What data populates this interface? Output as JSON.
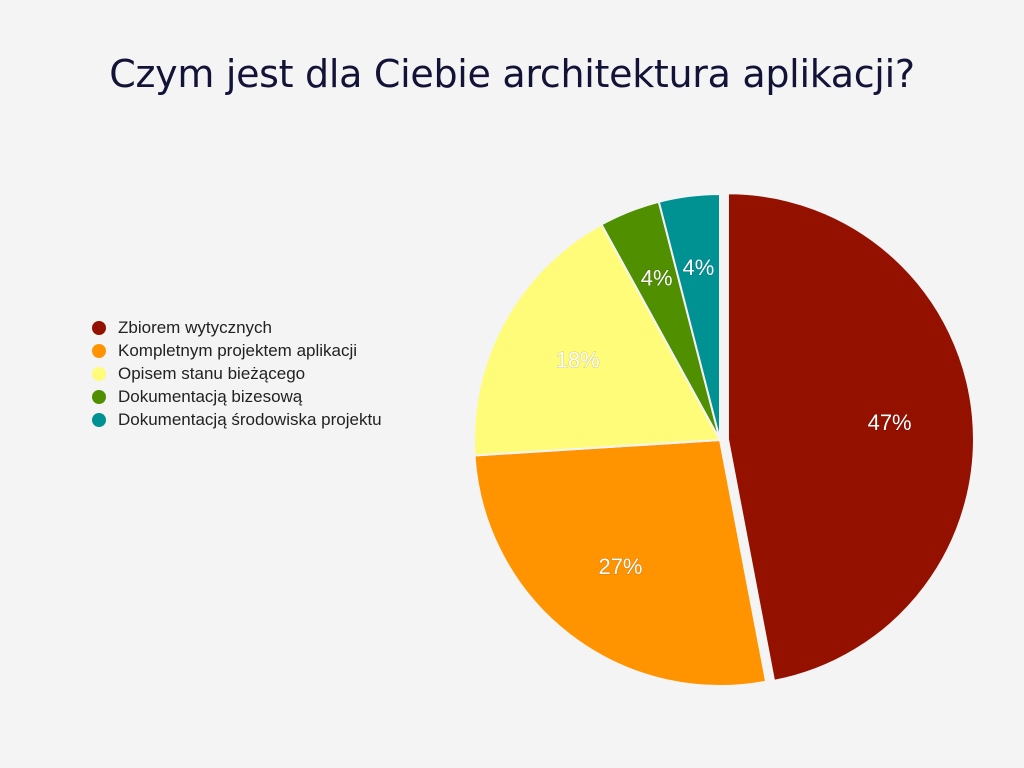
{
  "title": "Czym jest dla Ciebie architektura aplikacji?",
  "chart_data": {
    "type": "pie",
    "title": "Czym jest dla Ciebie architektura aplikacji?",
    "legend_position": "left",
    "categories": [
      "Zbiorem wytycznych",
      "Kompletnym projektem aplikacji",
      "Opisem stanu bieżącego",
      "Dokumentacją bizesową",
      "Dokumentacją środowiska projektu"
    ],
    "values": [
      47,
      27,
      18,
      4,
      4
    ],
    "data_labels": [
      "47%",
      "27%",
      "18%",
      "4%",
      "4%"
    ],
    "colors": [
      "#941100",
      "#ff9300",
      "#fffc79",
      "#4f8f00",
      "#009193"
    ],
    "exploded": [
      true,
      false,
      false,
      false,
      false
    ]
  }
}
